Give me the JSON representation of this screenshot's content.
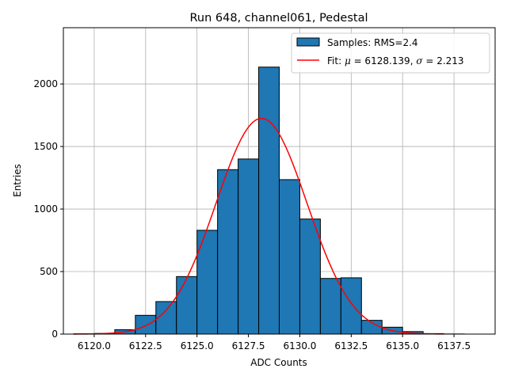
{
  "chart_data": {
    "type": "bar",
    "title": "Run 648, channel061, Pedestal",
    "xlabel": "ADC Counts",
    "ylabel": "Entries",
    "xlim": [
      6118.5,
      6139.5
    ],
    "ylim": [
      0,
      2450
    ],
    "xticks": [
      6120.0,
      6122.5,
      6125.0,
      6127.5,
      6130.0,
      6132.5,
      6135.0,
      6137.5
    ],
    "xtick_labels": [
      "6120.0",
      "6122.5",
      "6125.0",
      "6127.5",
      "6130.0",
      "6132.5",
      "6135.0",
      "6137.5"
    ],
    "yticks": [
      0,
      500,
      1000,
      1500,
      2000
    ],
    "ytick_labels": [
      "0",
      "500",
      "1000",
      "1500",
      "2000"
    ],
    "grid": true,
    "legend_position": "top-right",
    "histogram": {
      "name": "Samples: RMS=2.4",
      "color": "#1f77b4",
      "edge_color": "#000000",
      "bins": [
        {
          "x0": 6119.0,
          "x1": 6120.0,
          "count": 2
        },
        {
          "x0": 6120.0,
          "x1": 6121.0,
          "count": 5
        },
        {
          "x0": 6121.0,
          "x1": 6122.0,
          "count": 35
        },
        {
          "x0": 6122.0,
          "x1": 6123.0,
          "count": 150
        },
        {
          "x0": 6123.0,
          "x1": 6124.0,
          "count": 260
        },
        {
          "x0": 6124.0,
          "x1": 6125.0,
          "count": 460
        },
        {
          "x0": 6125.0,
          "x1": 6126.0,
          "count": 830
        },
        {
          "x0": 6126.0,
          "x1": 6127.0,
          "count": 1315
        },
        {
          "x0": 6127.0,
          "x1": 6128.0,
          "count": 1400
        },
        {
          "x0": 6128.0,
          "x1": 6129.0,
          "count": 2135
        },
        {
          "x0": 6129.0,
          "x1": 6130.0,
          "count": 1235
        },
        {
          "x0": 6130.0,
          "x1": 6131.0,
          "count": 920
        },
        {
          "x0": 6131.0,
          "x1": 6132.0,
          "count": 445
        },
        {
          "x0": 6132.0,
          "x1": 6133.0,
          "count": 450
        },
        {
          "x0": 6133.0,
          "x1": 6134.0,
          "count": 110
        },
        {
          "x0": 6134.0,
          "x1": 6135.0,
          "count": 55
        },
        {
          "x0": 6135.0,
          "x1": 6136.0,
          "count": 20
        },
        {
          "x0": 6136.0,
          "x1": 6137.0,
          "count": 4
        },
        {
          "x0": 6137.0,
          "x1": 6138.0,
          "count": 1
        }
      ]
    },
    "fit": {
      "name_prefix": "Fit: ",
      "mu_symbol": "μ",
      "mu_text": " = 6128.139, ",
      "sigma_symbol": "σ",
      "sigma_text": " = 2.213",
      "color": "#ff0000",
      "mu": 6128.139,
      "sigma": 2.213,
      "amplitude": 1725,
      "x_range": [
        6119.0,
        6137.0
      ]
    }
  }
}
